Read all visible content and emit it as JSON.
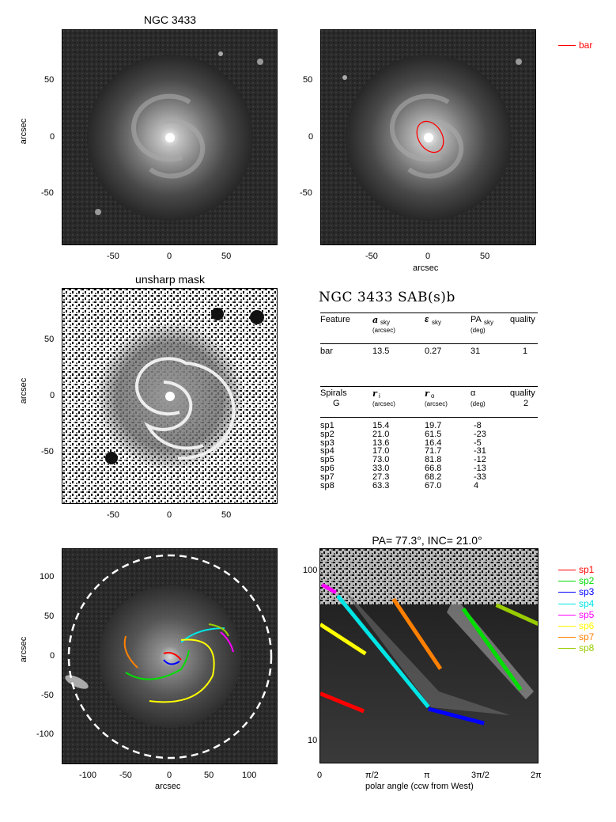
{
  "titles": {
    "panel1": "NGC 3433",
    "panel3": "unsharp mask",
    "panel6": "PA=  77.3°, INC=  21.0°"
  },
  "axes": {
    "arcsec": "arcsec",
    "polar_xlabel": "polar angle (ccw from West)"
  },
  "ticks_img": [
    "50",
    "0",
    "-50"
  ],
  "ticks_img_x": [
    "-50",
    "0",
    "50"
  ],
  "ticks_dep_x": [
    "-100",
    "-50",
    "0",
    "50",
    "100"
  ],
  "ticks_dep_y": [
    "100",
    "50",
    "0",
    "-50",
    "-100"
  ],
  "ticks_polar_x": [
    "0",
    "π/2",
    "π",
    "3π/2",
    "2π"
  ],
  "ticks_polar_y": [
    "100",
    "10"
  ],
  "legend_bar": {
    "label": "bar",
    "color": "#ff0000"
  },
  "legend_spirals": [
    {
      "label": "sp1",
      "color": "#ff0000"
    },
    {
      "label": "sp2",
      "color": "#00dd00"
    },
    {
      "label": "sp3",
      "color": "#0000ff"
    },
    {
      "label": "sp4",
      "color": "#00e5e5"
    },
    {
      "label": "sp5",
      "color": "#ff00ff"
    },
    {
      "label": "sp6",
      "color": "#ffff00"
    },
    {
      "label": "sp7",
      "color": "#ff8000"
    },
    {
      "label": "sp8",
      "color": "#99cc00"
    }
  ],
  "table": {
    "heading": "NGC 3433  SAB(s)b",
    "bar_header": {
      "c1": "Feature",
      "c2": "a",
      "c2sub": "sky",
      "c2unit": "(arcsec)",
      "c3": "ε",
      "c3sub": "sky",
      "c4": "PA",
      "c4sub": "sky",
      "c4unit": "(deg)",
      "c5": "quality"
    },
    "bar_row": {
      "c1": "bar",
      "c2": "13.5",
      "c3": "0.27",
      "c4": "31",
      "c5": "1"
    },
    "spiral_header": {
      "c1": "Spirals",
      "c1b": "G",
      "c2": "r",
      "c2sub": "i",
      "c2unit": "(arcsec)",
      "c3": "r",
      "c3sub": "o",
      "c3unit": "(arcsec)",
      "c4": "α",
      "c4unit": "(deg)",
      "c5": "quality",
      "c5b": "2"
    },
    "spiral_rows": [
      {
        "c1": "sp1",
        "c2": "15.4",
        "c3": "19.7",
        "c4": "-8"
      },
      {
        "c1": "sp2",
        "c2": "21.0",
        "c3": "61.5",
        "c4": "-23"
      },
      {
        "c1": "sp3",
        "c2": "13.6",
        "c3": "16.4",
        "c4": "-5"
      },
      {
        "c1": "sp4",
        "c2": "17.0",
        "c3": "71.7",
        "c4": "-31"
      },
      {
        "c1": "sp5",
        "c2": "73.0",
        "c3": "81.8",
        "c4": "-12"
      },
      {
        "c1": "sp6",
        "c2": "33.0",
        "c3": "66.8",
        "c4": "-13"
      },
      {
        "c1": "sp7",
        "c2": "27.3",
        "c3": "68.2",
        "c4": "-33"
      },
      {
        "c1": "sp8",
        "c2": "63.3",
        "c3": "67.0",
        "c4": "4"
      }
    ]
  },
  "chart_data": [
    {
      "type": "heatmap",
      "title": "NGC 3433",
      "ylabel": "arcsec",
      "xlim": [
        -95,
        95
      ],
      "ylim": [
        -95,
        95
      ]
    },
    {
      "type": "heatmap",
      "title": "",
      "xlabel": "arcsec",
      "xlim": [
        -95,
        95
      ],
      "ylim": [
        -95,
        95
      ],
      "overlay": {
        "name": "bar",
        "shape": "ellipse",
        "center": [
          0,
          0
        ],
        "semi_major": 13.5,
        "ellipticity": 0.27,
        "pa_deg": 31
      }
    },
    {
      "type": "heatmap",
      "title": "unsharp mask",
      "ylabel": "arcsec",
      "xlim": [
        -95,
        95
      ],
      "ylim": [
        -95,
        95
      ]
    },
    {
      "type": "heatmap",
      "title": "",
      "xlabel": "arcsec",
      "ylabel": "arcsec",
      "xlim": [
        -135,
        135
      ],
      "ylim": [
        -135,
        135
      ],
      "overlay": {
        "dashed_circle_radius": 128
      }
    },
    {
      "type": "line",
      "title": "PA=  77.3°, INC=  21.0°",
      "xlabel": "polar angle (ccw from West)",
      "xlim": [
        0,
        6.2832
      ],
      "ylim": [
        8,
        130
      ],
      "yscale": "log",
      "series": [
        {
          "name": "sp1",
          "x": [
            0.0,
            1.25
          ],
          "y": [
            20.0,
            15.9
          ]
        },
        {
          "name": "sp2",
          "x": [
            4.1,
            5.75
          ],
          "y": [
            60.0,
            21.0
          ]
        },
        {
          "name": "sp3",
          "x": [
            3.1,
            4.7
          ],
          "y": [
            16.4,
            13.6
          ]
        },
        {
          "name": "sp4",
          "x": [
            0.5,
            3.1
          ],
          "y": [
            71.0,
            16.8
          ]
        },
        {
          "name": "sp5",
          "x": [
            0.05,
            0.45
          ],
          "y": [
            82.0,
            74.0
          ]
        },
        {
          "name": "sp6",
          "x": [
            0.0,
            1.3
          ],
          "y": [
            49.0,
            33.5
          ]
        },
        {
          "name": "sp7",
          "x": [
            2.1,
            3.45
          ],
          "y": [
            68.0,
            27.5
          ]
        },
        {
          "name": "sp8",
          "x": [
            5.05,
            6.28
          ],
          "y": [
            63.0,
            49.0
          ]
        }
      ]
    }
  ]
}
